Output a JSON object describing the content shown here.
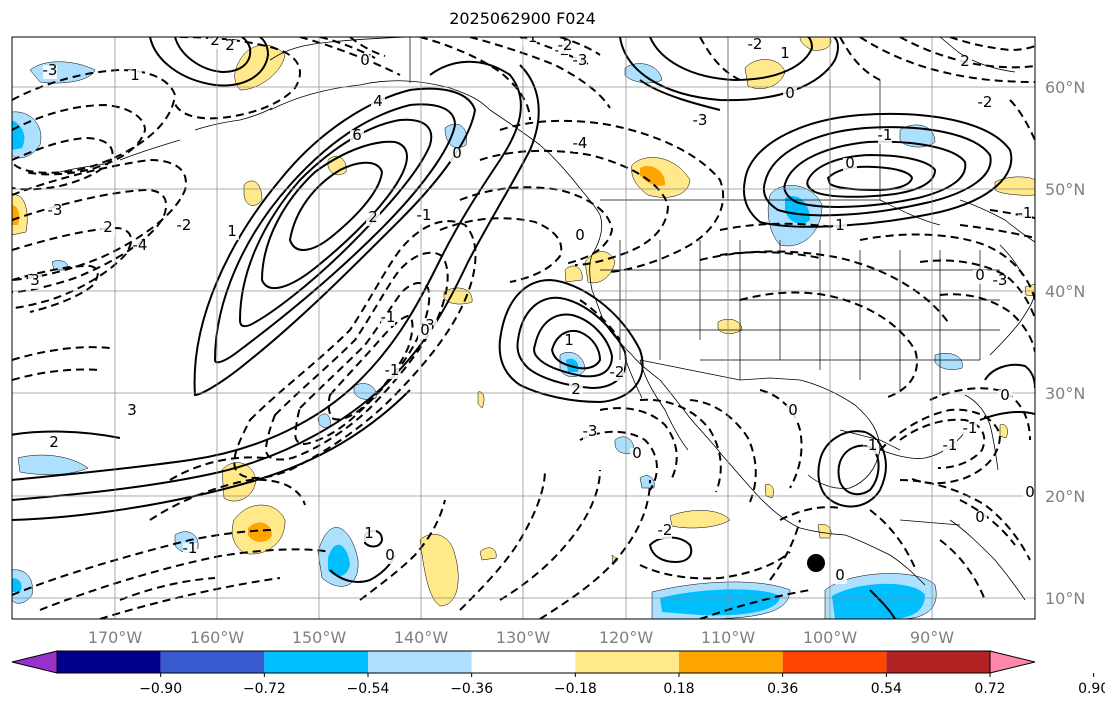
{
  "title": "2025062900 F024",
  "map": {
    "longitude_labels": [
      "170°W",
      "160°W",
      "150°W",
      "140°W",
      "130°W",
      "120°W",
      "110°W",
      "100°W",
      "90°W"
    ],
    "latitude_labels": [
      "60°N",
      "50°N",
      "40°N",
      "30°N",
      "20°N",
      "10°N"
    ],
    "contour_labels": [
      "2",
      "1",
      "0",
      "-1",
      "-2",
      "-3",
      "-4",
      "2",
      "3",
      "4",
      "6",
      "0",
      "1",
      "2",
      "-1",
      "-2",
      "-3",
      "-4",
      "-3",
      "2",
      "3",
      "-1",
      "0",
      "-1",
      "-2",
      "1",
      "2",
      "3",
      "-2",
      "0",
      "2",
      "-3",
      "0",
      "-1",
      "0",
      "1",
      "0",
      "-2",
      "0",
      "-1",
      "-1",
      "0",
      "0",
      "-1",
      "0",
      "-2",
      "0",
      "-1",
      "1",
      "-1",
      "2",
      "1",
      "-3",
      "-2",
      "-3",
      "0",
      "0"
    ],
    "marker": "filled-circle",
    "colors": {
      "contour": "#000000",
      "grid": "#888888",
      "coast": "#000000",
      "labels": "#808080"
    }
  },
  "colorbar": {
    "tick_labels": [
      "−0.90",
      "−0.72",
      "−0.54",
      "−0.36",
      "−0.18",
      "0.18",
      "0.36",
      "0.54",
      "0.72",
      "0.90"
    ],
    "colors": [
      "#9932CC",
      "#00008B",
      "#3A5BD0",
      "#00BFFF",
      "#ADDFFF",
      "#FFFFFF",
      "#FFE98A",
      "#FFA500",
      "#FF4500",
      "#B22222",
      "#FF88AA"
    ]
  }
}
